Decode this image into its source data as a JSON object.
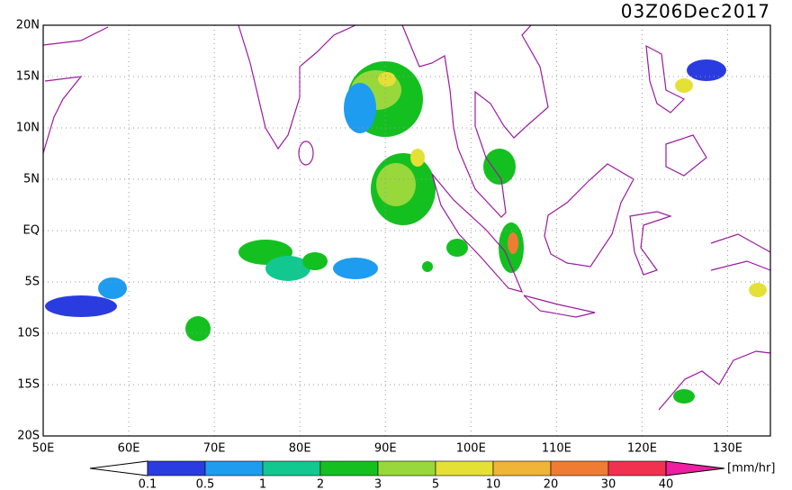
{
  "title": "03Z06Dec2017",
  "lat_labels": [
    "20N",
    "15N",
    "10N",
    "5N",
    "EQ",
    "5S",
    "10S",
    "15S",
    "20S"
  ],
  "lon_labels": [
    "50E",
    "60E",
    "70E",
    "80E",
    "90E",
    "100E",
    "110E",
    "120E",
    "130E"
  ],
  "colorbar": {
    "labels": [
      "0.1",
      "0.5",
      "1",
      "2",
      "3",
      "5",
      "10",
      "20",
      "30",
      "40"
    ],
    "colors": [
      "#ffffff",
      "#2a3ce0",
      "#1e9cf0",
      "#12c890",
      "#14c020",
      "#98d83a",
      "#e4e036",
      "#f0b438",
      "#f07c34",
      "#f03250",
      "#f01ea0"
    ],
    "unit": "[mm/hr]"
  }
}
